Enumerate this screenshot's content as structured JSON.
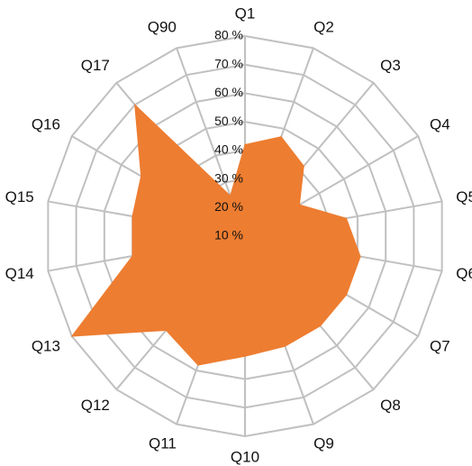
{
  "chart_data": {
    "type": "radar",
    "categories": [
      "Q1",
      "Q2",
      "Q3",
      "Q4",
      "Q5",
      "Q6",
      "Q7",
      "Q8",
      "Q9",
      "Q10",
      "Q11",
      "Q12",
      "Q13",
      "Q14",
      "Q15",
      "Q16",
      "Q17",
      "Q90"
    ],
    "values": [
      42,
      47,
      42,
      32,
      46,
      51,
      51,
      51,
      51,
      52,
      58,
      53,
      80,
      50,
      50,
      52,
      70,
      25
    ],
    "color": "#ed7d31",
    "grid_color": "#c0c0c0",
    "ylim": [
      10,
      80
    ],
    "yticks": [
      {
        "value": 10,
        "label": "10 %"
      },
      {
        "value": 20,
        "label": "20 %"
      },
      {
        "value": 30,
        "label": "30 %"
      },
      {
        "value": 40,
        "label": "40 %"
      },
      {
        "value": 50,
        "label": "50 %"
      },
      {
        "value": 60,
        "label": "60 %"
      },
      {
        "value": 70,
        "label": "70 %"
      },
      {
        "value": 80,
        "label": "80 %"
      }
    ],
    "grid": true
  }
}
